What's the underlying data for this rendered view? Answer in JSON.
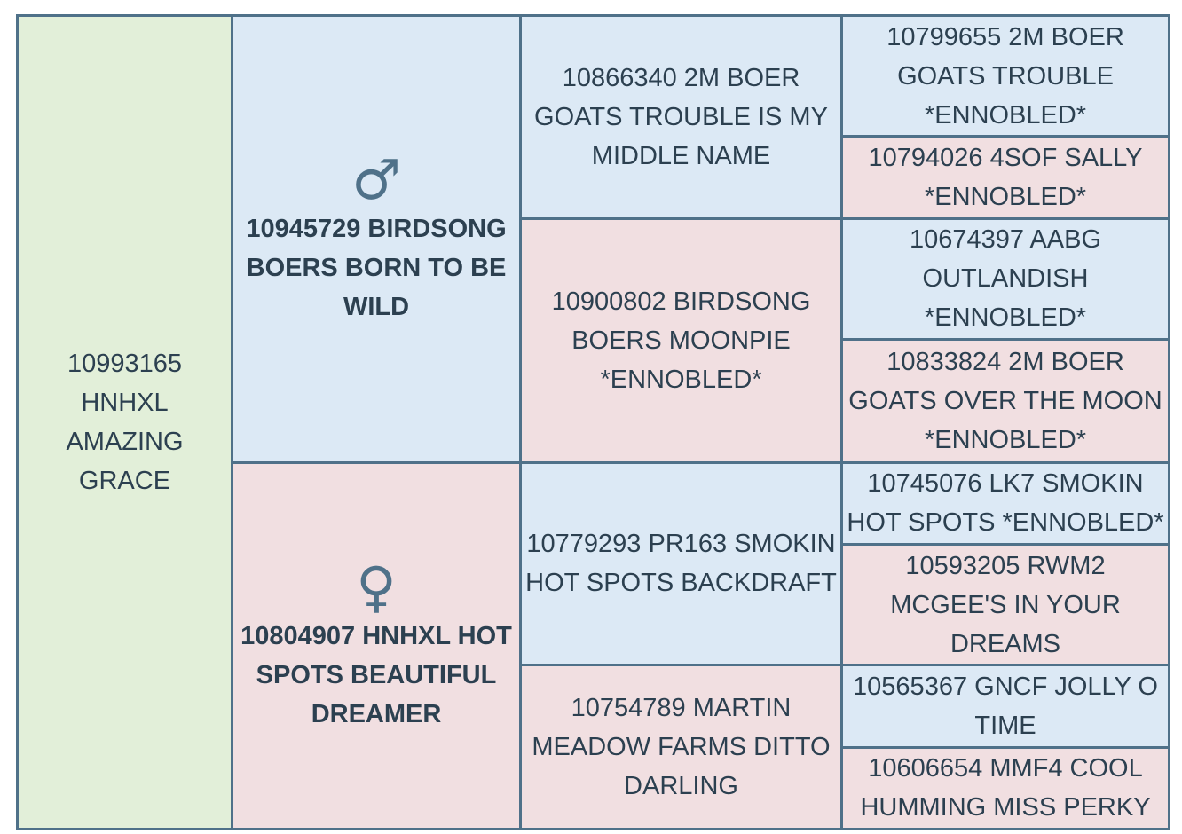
{
  "pedigree": {
    "subject": "10993165 HNHXL AMAZING GRACE",
    "sire": {
      "symbol": "♂",
      "name": "10945729 BIRDSONG BOERS BORN TO BE WILD",
      "sire": {
        "name": "10866340 2M BOER GOATS TROUBLE IS MY MIDDLE NAME",
        "sire": "10799655 2M BOER GOATS TROUBLE *ENNOBLED*",
        "dam": "10794026 4SOF SALLY *ENNOBLED*"
      },
      "dam": {
        "name": "10900802 BIRDSONG BOERS MOONPIE *ENNOBLED*",
        "sire": "10674397 AABG OUTLANDISH *ENNOBLED*",
        "dam": "10833824 2M BOER GOATS OVER THE MOON *ENNOBLED*"
      }
    },
    "dam": {
      "symbol": "♀",
      "name": "10804907 HNHXL HOT SPOTS BEAUTIFUL DREAMER",
      "sire": {
        "name": "10779293 PR163 SMOKIN HOT SPOTS BACKDRAFT",
        "sire": "10745076 LK7 SMOKIN HOT SPOTS *ENNOBLED*",
        "dam": "10593205 RWM2 MCGEE'S IN YOUR DREAMS"
      },
      "dam": {
        "name": "10754789 MARTIN MEADOW FARMS DITTO DARLING",
        "sire": "10565367 GNCF JOLLY O TIME",
        "dam": "10606654 MMF4 COOL HUMMING MISS PERKY"
      }
    }
  }
}
